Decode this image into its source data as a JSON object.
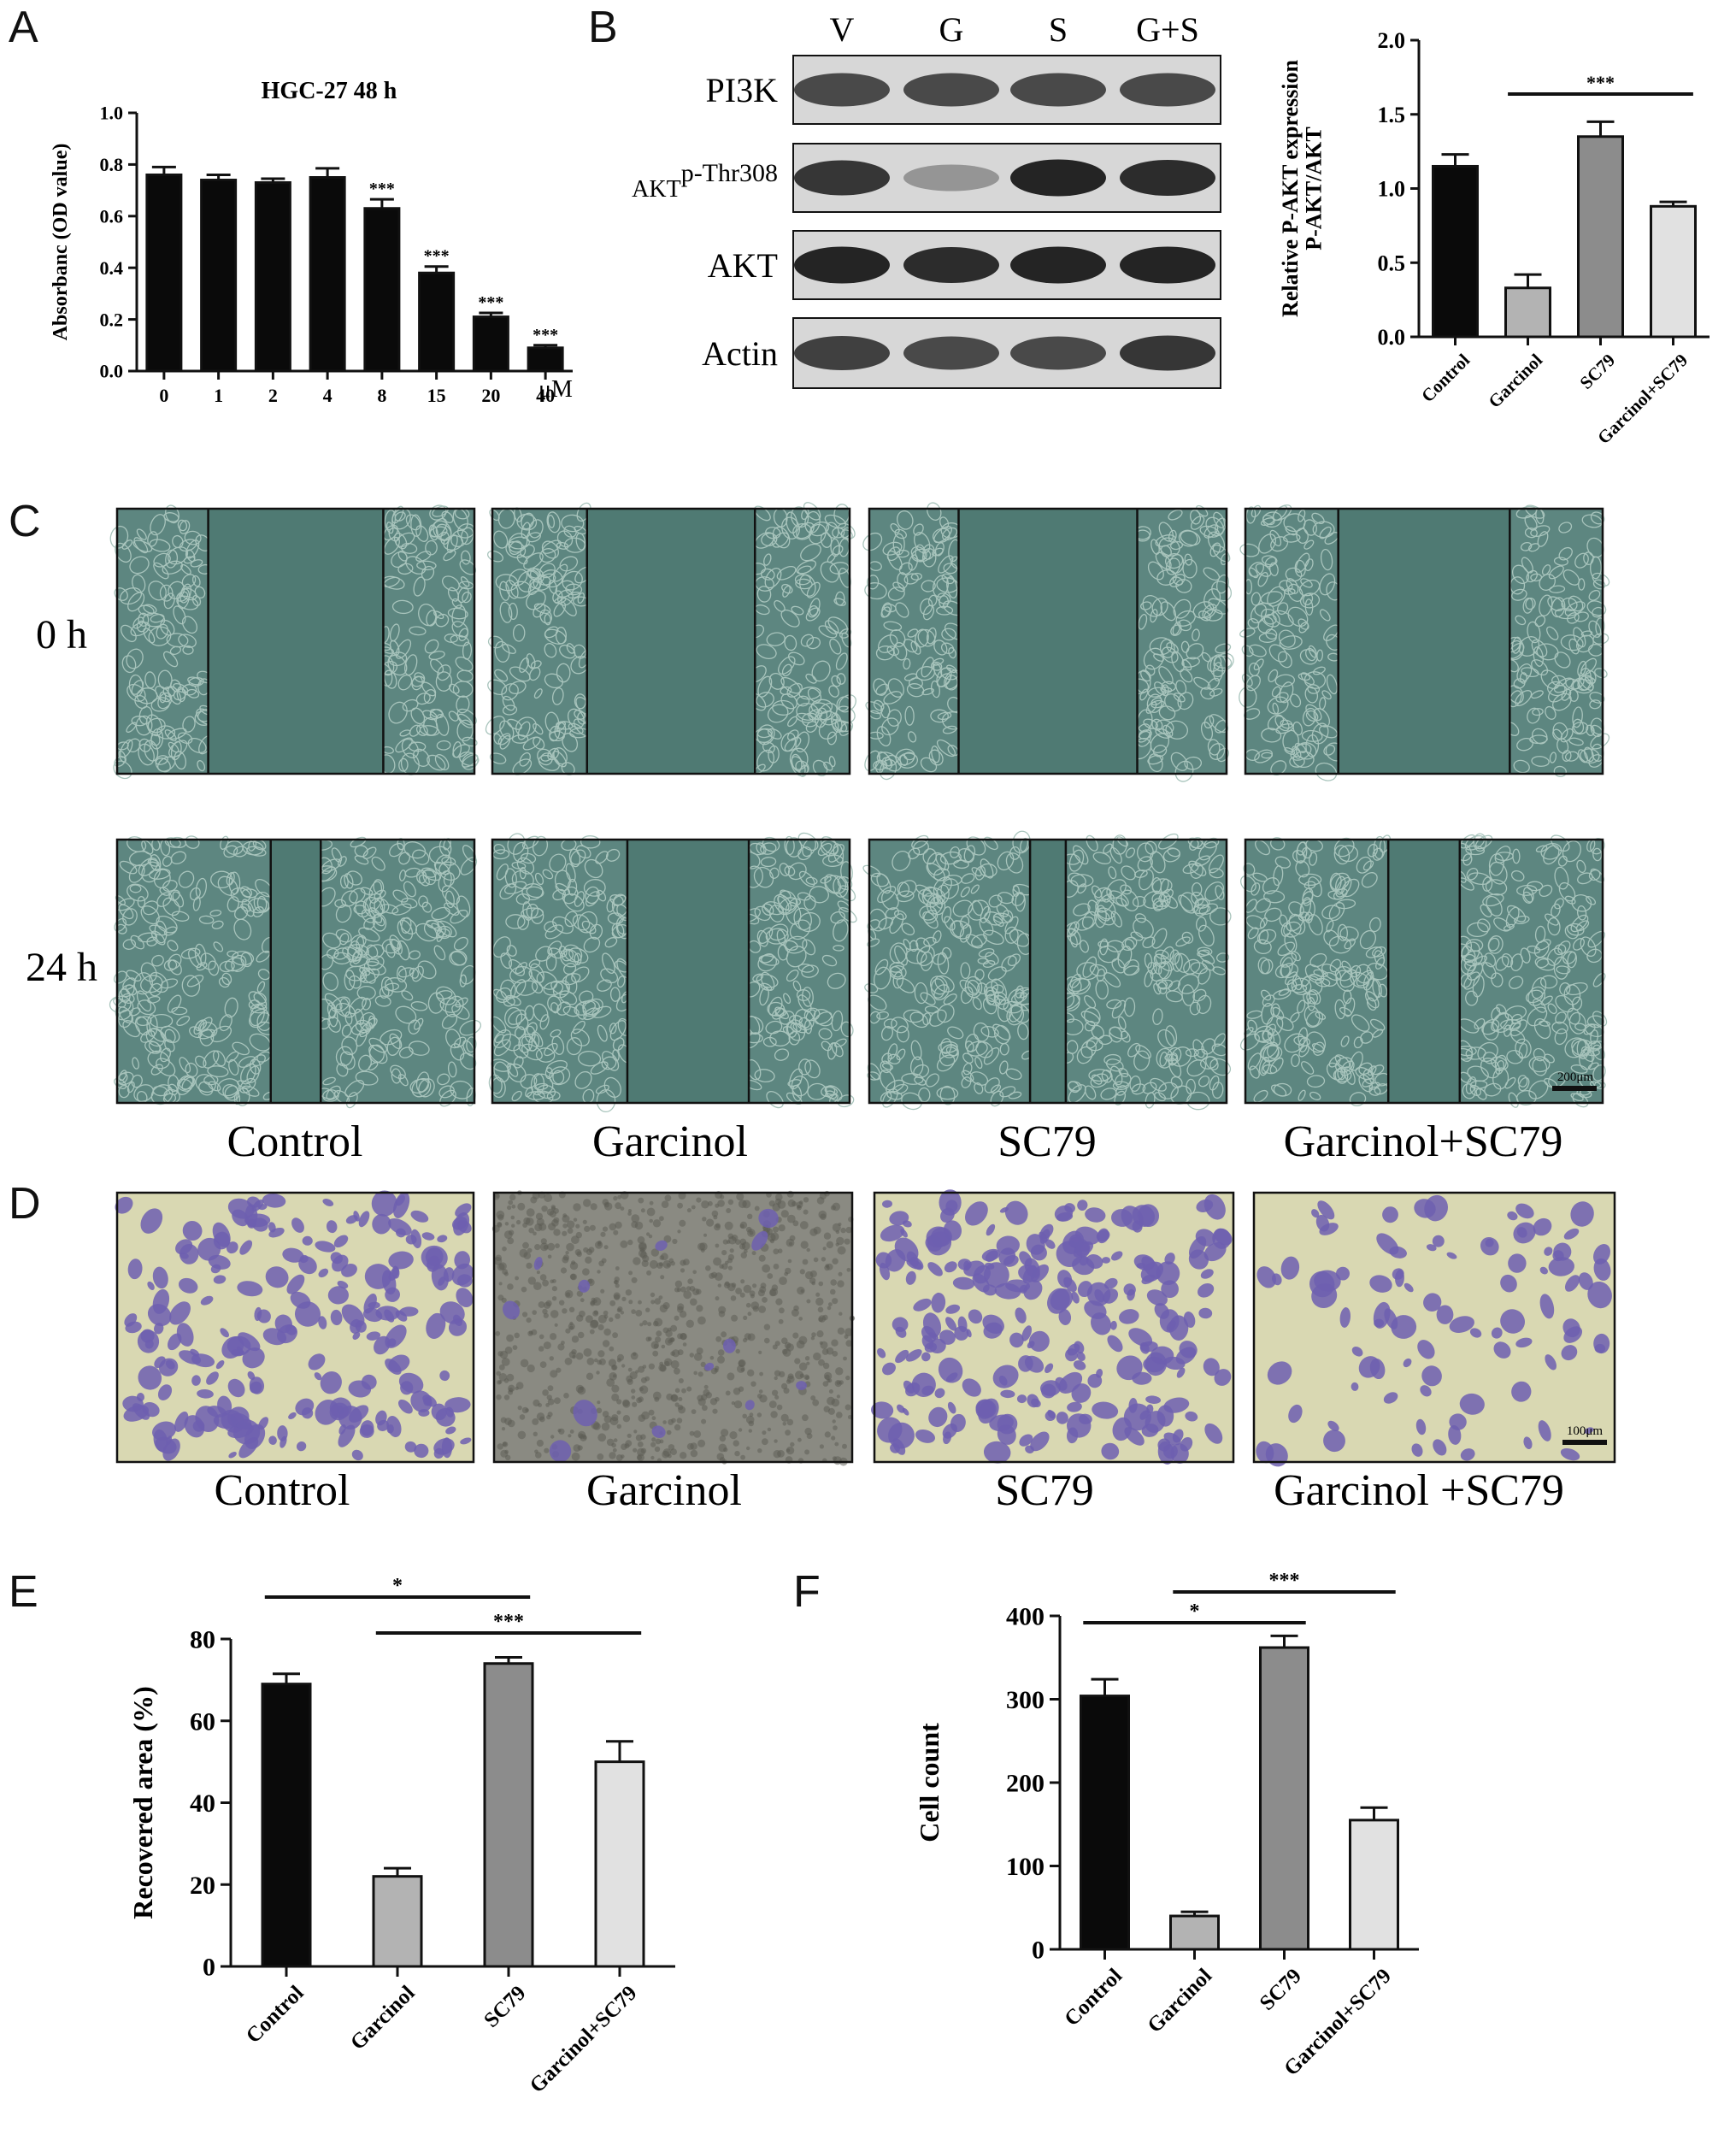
{
  "panel_labels": [
    "A",
    "B",
    "C",
    "D",
    "E",
    "F"
  ],
  "colors": {
    "black": "#0a0a0a",
    "dark_gray": "#8c8c8c",
    "light_gray": "#b3b3b3",
    "lighter_gray": "#e1e1e1",
    "wound_bg": "#4f7a73",
    "cell_bg": "#c8cca0",
    "crystal_violet": "#6d5fb0"
  },
  "chart_data": [
    {
      "id": "A",
      "type": "bar",
      "title": "HGC-27 48 h",
      "ylabel": "Absorbanc (OD value)",
      "xunit": "μM",
      "categories": [
        "0",
        "1",
        "2",
        "4",
        "8",
        "15",
        "20",
        "40"
      ],
      "values": [
        0.76,
        0.74,
        0.73,
        0.75,
        0.63,
        0.38,
        0.21,
        0.09
      ],
      "errors": [
        0.03,
        0.02,
        0.015,
        0.035,
        0.035,
        0.025,
        0.015,
        0.01
      ],
      "significance": [
        "",
        "",
        "",
        "",
        "***",
        "***",
        "***",
        "***"
      ],
      "ylim": [
        0,
        1.0
      ],
      "yticks": [
        "0.0",
        "0.2",
        "0.4",
        "0.6",
        "0.8",
        "1.0"
      ],
      "bar_color": "#0a0a0a"
    },
    {
      "id": "B",
      "type": "bar",
      "ylabel": "Relative P-AKT expression",
      "ylabel2": "P-AKT/AKT",
      "categories": [
        "Control",
        "Garcinol",
        "SC79",
        "Garcinol+SC79"
      ],
      "values": [
        1.15,
        0.33,
        1.35,
        0.88
      ],
      "errors": [
        0.08,
        0.09,
        0.1,
        0.03
      ],
      "colors": [
        "#0a0a0a",
        "#b3b3b3",
        "#8c8c8c",
        "#e1e1e1"
      ],
      "ylim": [
        0,
        2.0
      ],
      "yticks": [
        "0.0",
        "0.5",
        "1.0",
        "1.5",
        "2.0"
      ],
      "brackets": [
        {
          "from": 1,
          "to": 3,
          "label": "***"
        }
      ]
    },
    {
      "id": "E",
      "type": "bar",
      "ylabel": "Recovered area (%)",
      "categories": [
        "Control",
        "Garcinol",
        "SC79",
        "Garcinol+SC79"
      ],
      "values": [
        69,
        22,
        74,
        50
      ],
      "errors": [
        2.5,
        2,
        1.5,
        5
      ],
      "colors": [
        "#0a0a0a",
        "#b3b3b3",
        "#8c8c8c",
        "#e1e1e1"
      ],
      "ylim": [
        0,
        80
      ],
      "yticks": [
        "0",
        "20",
        "40",
        "60",
        "80"
      ],
      "brackets": [
        {
          "from": 0,
          "to": 2,
          "label": "*"
        },
        {
          "from": 1,
          "to": 3,
          "label": "***"
        }
      ]
    },
    {
      "id": "F",
      "type": "bar",
      "ylabel": "Cell count",
      "categories": [
        "Control",
        "Garcinol",
        "SC79",
        "Garcinol+SC79"
      ],
      "values": [
        304,
        40,
        362,
        155
      ],
      "errors": [
        20,
        5,
        14,
        15
      ],
      "colors": [
        "#0a0a0a",
        "#b3b3b3",
        "#8c8c8c",
        "#e1e1e1"
      ],
      "ylim": [
        0,
        400
      ],
      "yticks": [
        "0",
        "100",
        "200",
        "300",
        "400"
      ],
      "brackets": [
        {
          "from": 1,
          "to": 3,
          "label": "***"
        },
        {
          "from": 0,
          "to": 2,
          "label": "*"
        }
      ]
    }
  ],
  "western_blot": {
    "lanes": [
      "V",
      "G",
      "S",
      "G+S"
    ],
    "proteins": [
      {
        "name": "PI3K",
        "sup": "",
        "intensity": [
          0.75,
          0.75,
          0.75,
          0.75
        ]
      },
      {
        "name": "AKT",
        "sup": "p-Thr308",
        "intensity": [
          0.85,
          0.35,
          0.95,
          0.9
        ]
      },
      {
        "name": "AKT",
        "sup": "",
        "intensity": [
          0.95,
          0.9,
          0.95,
          0.95
        ]
      },
      {
        "name": "Actin",
        "sup": "",
        "intensity": [
          0.8,
          0.75,
          0.75,
          0.85
        ]
      }
    ]
  },
  "wound": {
    "timepoints": [
      "0 h",
      "24 h"
    ],
    "groups": [
      "Control",
      "Garcinol",
      "SC79",
      "Garcinol+SC79"
    ],
    "gap_fraction_0h": [
      0.49,
      0.47,
      0.5,
      0.48
    ],
    "gap_fraction_24h": [
      0.14,
      0.34,
      0.1,
      0.2
    ],
    "scale_bar": "200μm"
  },
  "transwell": {
    "groups": [
      "Control",
      "Garcinol",
      "SC79",
      "Garcinol +SC79"
    ],
    "density": [
      0.85,
      0.05,
      0.95,
      0.35
    ],
    "scale_bar": "100μm"
  }
}
